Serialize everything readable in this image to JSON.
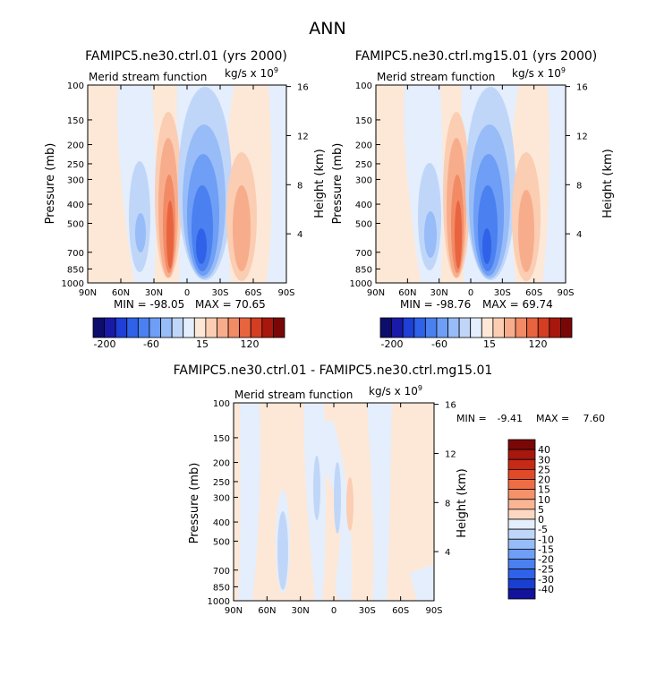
{
  "figure_title": "ANN",
  "chart_data": [
    {
      "type": "contour",
      "title": "FAMIPC5.ne30.ctrl.01 (yrs 2000)",
      "left_label": "Merid stream function",
      "units_label": "kg/s x 10",
      "units_exponent": "9",
      "xlabel": "",
      "ylabel": "Pressure (mb)",
      "ylabel_right": "Height (km)",
      "x_ticks": [
        "90N",
        "60N",
        "30N",
        "0",
        "30S",
        "60S",
        "90S"
      ],
      "x_range": [
        90,
        -90
      ],
      "y_ticks": [
        "100",
        "150",
        "200",
        "250",
        "300",
        "400",
        "500",
        "700",
        "850",
        "1000"
      ],
      "y_range_mb": [
        100,
        1000
      ],
      "y_right_ticks": [
        "16",
        "12",
        "8",
        "4"
      ],
      "min_label": "MIN = -98.05",
      "max_label": "MAX = 70.65",
      "min": -98.05,
      "max": 70.65,
      "features": [
        {
          "name": "NH positive cell",
          "sign": "positive",
          "center_lat": 18,
          "extreme": 70.65
        },
        {
          "name": "SH negative cell",
          "sign": "negative",
          "center_lat": -10,
          "extreme": -98.05
        },
        {
          "name": "NH midlatitude negative cell",
          "sign": "negative",
          "center_lat": 42
        },
        {
          "name": "SH midlatitude positive cell",
          "sign": "positive",
          "center_lat": -45
        }
      ]
    },
    {
      "type": "contour",
      "title": "FAMIPC5.ne30.ctrl.mg15.01 (yrs 2000)",
      "left_label": "Merid stream function",
      "units_label": "kg/s x 10",
      "units_exponent": "9",
      "xlabel": "",
      "ylabel": "Pressure (mb)",
      "ylabel_right": "Height (km)",
      "x_ticks": [
        "90N",
        "60N",
        "30N",
        "0",
        "30S",
        "60S",
        "90S"
      ],
      "x_range": [
        90,
        -90
      ],
      "y_ticks": [
        "100",
        "150",
        "200",
        "250",
        "300",
        "400",
        "500",
        "700",
        "850",
        "1000"
      ],
      "y_range_mb": [
        100,
        1000
      ],
      "y_right_ticks": [
        "16",
        "12",
        "8",
        "4"
      ],
      "min_label": "MIN = -98.76",
      "max_label": "MAX = 69.74",
      "min": -98.76,
      "max": 69.74,
      "features": [
        {
          "name": "NH positive cell",
          "sign": "positive",
          "center_lat": 18,
          "extreme": 69.74
        },
        {
          "name": "SH negative cell",
          "sign": "negative",
          "center_lat": -10,
          "extreme": -98.76
        },
        {
          "name": "NH midlatitude negative cell",
          "sign": "negative",
          "center_lat": 42
        },
        {
          "name": "SH midlatitude positive cell",
          "sign": "positive",
          "center_lat": -45
        }
      ]
    },
    {
      "type": "contour",
      "title": "FAMIPC5.ne30.ctrl.01 - FAMIPC5.ne30.ctrl.mg15.01",
      "left_label": "Merid stream function",
      "units_label": "kg/s x 10",
      "units_exponent": "9",
      "xlabel": "",
      "ylabel": "Pressure (mb)",
      "ylabel_right": "Height (km)",
      "x_ticks": [
        "90N",
        "60N",
        "30N",
        "0",
        "30S",
        "60S",
        "90S"
      ],
      "x_range": [
        90,
        -90
      ],
      "y_ticks": [
        "100",
        "150",
        "200",
        "250",
        "300",
        "400",
        "500",
        "700",
        "850",
        "1000"
      ],
      "y_range_mb": [
        100,
        1000
      ],
      "y_right_ticks": [
        "16",
        "12",
        "8",
        "4"
      ],
      "min_label": "MIN =",
      "min_value": "-9.41",
      "max_label": "MAX =",
      "max_value": "7.60",
      "min": -9.41,
      "max": 7.6
    }
  ],
  "colorbar_top": {
    "levels_shown": [
      "-200",
      "-60",
      "15",
      "120"
    ],
    "colors": [
      "#0d0d6b",
      "#1a1aa8",
      "#1f3fd6",
      "#2f62e8",
      "#4a80f0",
      "#6e9ef5",
      "#97bcf7",
      "#c0d6f9",
      "#e4eefc",
      "#fde8d8",
      "#fbcdb3",
      "#f7ad8c",
      "#f28a66",
      "#e8643f",
      "#d43d22",
      "#a8170d",
      "#7a0707"
    ]
  },
  "colorbar_diff": {
    "labels": [
      "40",
      "30",
      "25",
      "20",
      "15",
      "10",
      "5",
      "0",
      "-5",
      "-10",
      "-15",
      "-20",
      "-25",
      "-30",
      "-40"
    ],
    "colors": [
      "#7a0707",
      "#a8170d",
      "#c62a16",
      "#e04a28",
      "#ef6d44",
      "#f5926a",
      "#f9b594",
      "#fcd8c2",
      "#e4eefc",
      "#c0d6f9",
      "#97bcf7",
      "#6e9ef5",
      "#4a80f0",
      "#2f62e8",
      "#1a3fd0",
      "#12129a"
    ]
  }
}
